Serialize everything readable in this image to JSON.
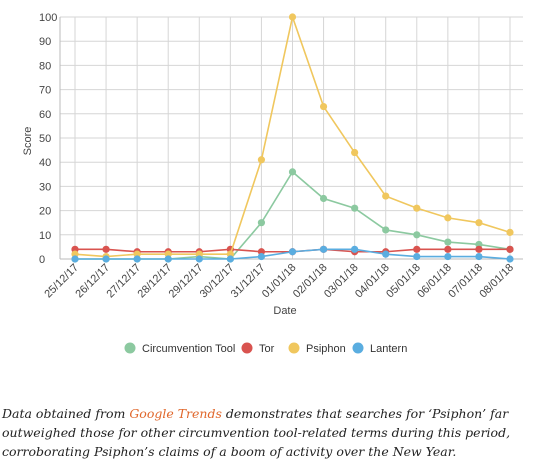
{
  "chart_data": {
    "type": "line",
    "title": "",
    "xlabel": "Date",
    "ylabel": "Score",
    "ylim": [
      0,
      100
    ],
    "yticks": [
      0,
      10,
      20,
      30,
      40,
      50,
      60,
      70,
      80,
      90,
      100
    ],
    "grid": true,
    "legend_position": "bottom",
    "categories": [
      "25/12/17",
      "26/12/17",
      "27/12/17",
      "28/12/17",
      "29/12/17",
      "30/12/17",
      "31/12/17",
      "01/01/18",
      "02/01/18",
      "03/01/18",
      "04/01/18",
      "05/01/18",
      "06/01/18",
      "07/01/18",
      "08/01/18"
    ],
    "series": [
      {
        "name": "Circumvention Tool",
        "color": "#8cc9a0",
        "values": [
          0,
          0,
          0,
          0,
          1,
          0,
          15,
          36,
          25,
          21,
          12,
          10,
          7,
          6,
          4
        ]
      },
      {
        "name": "Tor",
        "color": "#d9534f",
        "values": [
          4,
          4,
          3,
          3,
          3,
          4,
          3,
          3,
          4,
          3,
          3,
          4,
          4,
          4,
          4
        ]
      },
      {
        "name": "Psiphon",
        "color": "#f0c75e",
        "values": [
          2,
          1,
          2,
          2,
          2,
          2,
          41,
          100,
          63,
          44,
          26,
          21,
          17,
          15,
          11
        ]
      },
      {
        "name": "Lantern",
        "color": "#5aade0",
        "values": [
          0,
          0,
          0,
          0,
          0,
          0,
          1,
          3,
          4,
          4,
          2,
          1,
          1,
          1,
          0
        ]
      }
    ]
  },
  "caption": {
    "before": "Data obtained from ",
    "link": "Google Trends",
    "after": " demonstrates that searches for ‘Psiphon’ far outweighed those for other circumvention tool-related terms during this period, corroborating Psiphon’s claims of a boom of activity over the New Year."
  }
}
